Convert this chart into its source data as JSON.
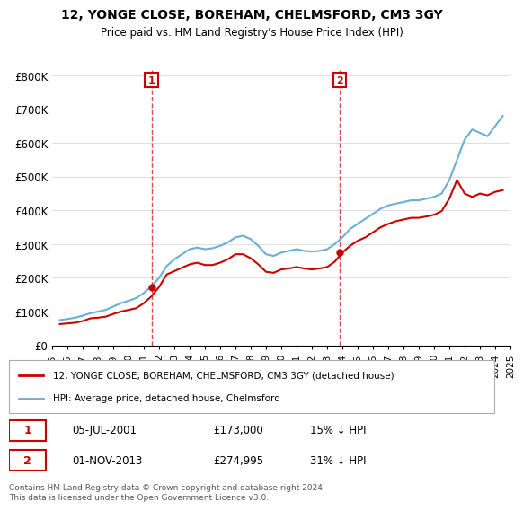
{
  "title": "12, YONGE CLOSE, BOREHAM, CHELMSFORD, CM3 3GY",
  "subtitle": "Price paid vs. HM Land Registry's House Price Index (HPI)",
  "legend_line1": "12, YONGE CLOSE, BOREHAM, CHELMSFORD, CM3 3GY (detached house)",
  "legend_line2": "HPI: Average price, detached house, Chelmsford",
  "annotation1_label": "1",
  "annotation1_date": "05-JUL-2001",
  "annotation1_price": "£173,000",
  "annotation1_hpi": "15% ↓ HPI",
  "annotation2_label": "2",
  "annotation2_date": "01-NOV-2013",
  "annotation2_price": "£274,995",
  "annotation2_hpi": "31% ↓ HPI",
  "footer": "Contains HM Land Registry data © Crown copyright and database right 2024.\nThis data is licensed under the Open Government Licence v3.0.",
  "ylabel": "",
  "ylim": [
    0,
    820000
  ],
  "yticks": [
    0,
    100000,
    200000,
    300000,
    400000,
    500000,
    600000,
    700000,
    800000
  ],
  "ytick_labels": [
    "£0",
    "£100K",
    "£200K",
    "£300K",
    "£400K",
    "£500K",
    "£600K",
    "£700K",
    "£800K"
  ],
  "hpi_color": "#6baed6",
  "price_color": "#cc0000",
  "vline_color": "#cc0000",
  "annotation_box_color": "#cc0000",
  "background_color": "#ffffff",
  "grid_color": "#e0e0e0",
  "hpi_data": {
    "years": [
      1995.5,
      1996.0,
      1996.5,
      1997.0,
      1997.5,
      1998.0,
      1998.5,
      1999.0,
      1999.5,
      2000.0,
      2000.5,
      2001.0,
      2001.5,
      2002.0,
      2002.5,
      2003.0,
      2003.5,
      2004.0,
      2004.5,
      2005.0,
      2005.5,
      2006.0,
      2006.5,
      2007.0,
      2007.5,
      2008.0,
      2008.5,
      2009.0,
      2009.5,
      2010.0,
      2010.5,
      2011.0,
      2011.5,
      2012.0,
      2012.5,
      2013.0,
      2013.5,
      2014.0,
      2014.5,
      2015.0,
      2015.5,
      2016.0,
      2016.5,
      2017.0,
      2017.5,
      2018.0,
      2018.5,
      2019.0,
      2019.5,
      2020.0,
      2020.5,
      2021.0,
      2021.5,
      2022.0,
      2022.5,
      2023.0,
      2023.5,
      2024.0,
      2024.5
    ],
    "values": [
      75000,
      78000,
      82000,
      88000,
      95000,
      100000,
      105000,
      115000,
      125000,
      132000,
      140000,
      155000,
      175000,
      200000,
      235000,
      255000,
      270000,
      285000,
      290000,
      285000,
      288000,
      295000,
      305000,
      320000,
      325000,
      315000,
      295000,
      270000,
      265000,
      275000,
      280000,
      285000,
      280000,
      278000,
      280000,
      285000,
      300000,
      320000,
      345000,
      360000,
      375000,
      390000,
      405000,
      415000,
      420000,
      425000,
      430000,
      430000,
      435000,
      440000,
      450000,
      490000,
      550000,
      610000,
      640000,
      630000,
      620000,
      650000,
      680000
    ]
  },
  "price_data": {
    "years": [
      1995.5,
      1996.0,
      1996.5,
      1997.0,
      1997.5,
      1998.0,
      1998.5,
      1999.0,
      1999.5,
      2000.0,
      2000.5,
      2001.0,
      2001.5,
      2002.0,
      2002.5,
      2003.0,
      2003.5,
      2004.0,
      2004.5,
      2005.0,
      2005.5,
      2006.0,
      2006.5,
      2007.0,
      2007.5,
      2008.0,
      2008.5,
      2009.0,
      2009.5,
      2010.0,
      2010.5,
      2011.0,
      2011.5,
      2012.0,
      2012.5,
      2013.0,
      2013.5,
      2014.0,
      2014.5,
      2015.0,
      2015.5,
      2016.0,
      2016.5,
      2017.0,
      2017.5,
      2018.0,
      2018.5,
      2019.0,
      2019.5,
      2020.0,
      2020.5,
      2021.0,
      2021.5,
      2022.0,
      2022.5,
      2023.0,
      2023.5,
      2024.0,
      2024.5
    ],
    "values": [
      63000,
      65000,
      67000,
      72000,
      80000,
      82000,
      85000,
      93000,
      100000,
      105000,
      110000,
      125000,
      145000,
      173000,
      210000,
      220000,
      230000,
      240000,
      245000,
      238000,
      238000,
      245000,
      255000,
      270000,
      270000,
      258000,
      240000,
      218000,
      215000,
      225000,
      228000,
      232000,
      228000,
      225000,
      228000,
      232000,
      248000,
      274995,
      295000,
      310000,
      320000,
      335000,
      350000,
      360000,
      368000,
      373000,
      378000,
      378000,
      382000,
      387000,
      398000,
      435000,
      490000,
      450000,
      440000,
      450000,
      445000,
      455000,
      460000
    ]
  },
  "sale1_x": 2001.5,
  "sale1_y": 173000,
  "sale2_x": 2013.833,
  "sale2_y": 274995,
  "xmin": 1995,
  "xmax": 2025
}
